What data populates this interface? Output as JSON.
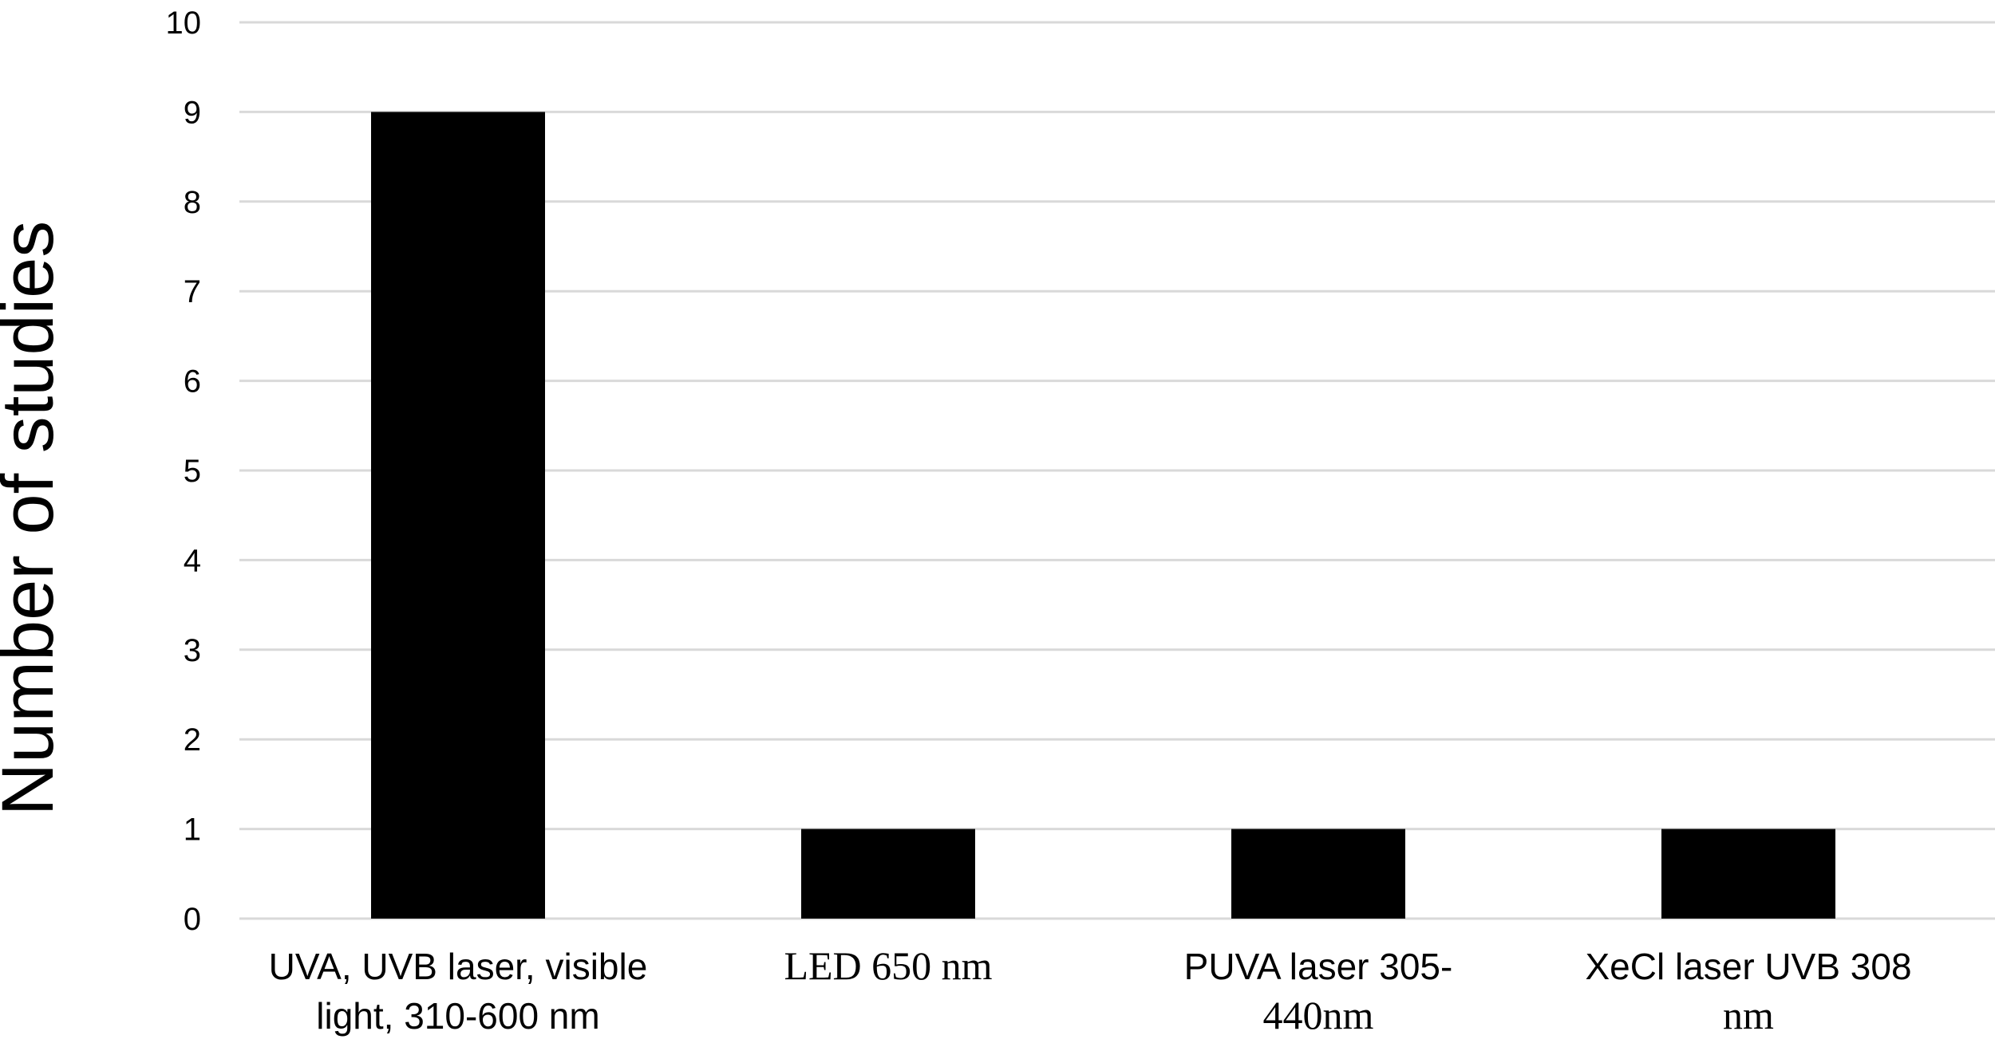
{
  "chart_data": {
    "type": "bar",
    "title": "",
    "xlabel": "",
    "ylabel": "Number of studies",
    "ylim": [
      0,
      10
    ],
    "yticks": [
      0,
      1,
      2,
      3,
      4,
      5,
      6,
      7,
      8,
      9,
      10
    ],
    "grid": true,
    "categories": [
      {
        "lines": [
          "UVA, UVB laser, visible",
          "light, 310-600 nm"
        ],
        "style": "sans"
      },
      {
        "lines": [
          "LED 650 nm"
        ],
        "style": "serif"
      },
      {
        "lines": [
          "PUVA laser 305-",
          "440nm"
        ],
        "style": "mixed"
      },
      {
        "lines": [
          "XeCl laser UVB 308",
          "nm"
        ],
        "style": "mixed"
      }
    ],
    "values": [
      9,
      1,
      1,
      1
    ],
    "colors": {
      "bar": "#000000",
      "grid": "#d9d9d9"
    }
  }
}
